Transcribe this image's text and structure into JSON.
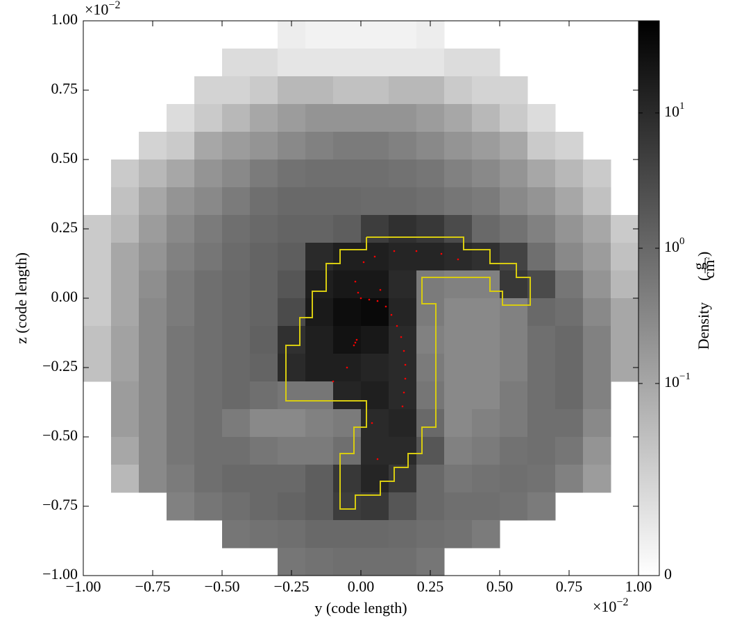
{
  "chart_data": {
    "type": "heatmap",
    "xlabel": "y  (code length)",
    "ylabel": "z  (code length)",
    "x_multiplier": {
      "base": "×10",
      "exponent": "−2"
    },
    "y_multiplier": {
      "base": "×10",
      "exponent": "−2"
    },
    "xlim": [
      -1,
      1
    ],
    "ylim": [
      -1,
      1
    ],
    "xticks": [
      {
        "value": -1,
        "label": "−1.00"
      },
      {
        "value": -0.75,
        "label": "−0.75"
      },
      {
        "value": -0.5,
        "label": "−0.50"
      },
      {
        "value": -0.25,
        "label": "−0.25"
      },
      {
        "value": 0,
        "label": "0.00"
      },
      {
        "value": 0.25,
        "label": "0.25"
      },
      {
        "value": 0.5,
        "label": "0.50"
      },
      {
        "value": 0.75,
        "label": "0.75"
      },
      {
        "value": 1,
        "label": "1.00"
      }
    ],
    "yticks": [
      {
        "value": -1,
        "label": "−1.00"
      },
      {
        "value": -0.75,
        "label": "−0.75"
      },
      {
        "value": -0.5,
        "label": "−0.50"
      },
      {
        "value": -0.25,
        "label": "−0.25"
      },
      {
        "value": 0,
        "label": "0.00"
      },
      {
        "value": 0.25,
        "label": "0.25"
      },
      {
        "value": 0.5,
        "label": "0.50"
      },
      {
        "value": 0.75,
        "label": "0.75"
      },
      {
        "value": 1,
        "label": "1.00"
      }
    ],
    "cmap": "gray_r",
    "colorbar": {
      "label": "Density",
      "units_num": "g",
      "units_den": "cm",
      "units_exp": "2",
      "scale": "symlog",
      "linthresh": 0.1,
      "linscale": 1.42,
      "clim": [
        0,
        48
      ],
      "ticks": [
        {
          "value": 0,
          "label": "0"
        },
        {
          "value": 0.1,
          "label": "10",
          "exponent": "−1"
        },
        {
          "value": 1,
          "label": "10",
          "exponent": "0"
        },
        {
          "value": 10,
          "label": "10",
          "exponent": "1"
        }
      ]
    },
    "values": [
      [
        null,
        null,
        null,
        null,
        null,
        null,
        null,
        0.02,
        0.015,
        0.015,
        0.015,
        0.015,
        0.02,
        null,
        null,
        null,
        null,
        null,
        null,
        null
      ],
      [
        null,
        null,
        null,
        null,
        null,
        0.04,
        0.04,
        0.03,
        0.03,
        0.03,
        0.03,
        0.03,
        0.03,
        0.04,
        0.04,
        null,
        null,
        null,
        null,
        null
      ],
      [
        null,
        null,
        null,
        null,
        0.05,
        0.05,
        0.06,
        0.08,
        0.08,
        0.07,
        0.07,
        0.08,
        0.08,
        0.06,
        0.05,
        0.05,
        null,
        null,
        null,
        null
      ],
      [
        null,
        null,
        null,
        0.04,
        0.06,
        0.08,
        0.1,
        0.15,
        0.2,
        0.2,
        0.2,
        0.2,
        0.15,
        0.1,
        0.08,
        0.06,
        0.04,
        null,
        null,
        null
      ],
      [
        null,
        null,
        0.05,
        0.06,
        0.1,
        0.15,
        0.2,
        0.3,
        0.4,
        0.5,
        0.5,
        0.4,
        0.3,
        0.2,
        0.15,
        0.1,
        0.06,
        0.05,
        null,
        null
      ],
      [
        null,
        0.06,
        0.08,
        0.1,
        0.2,
        0.3,
        0.5,
        0.7,
        0.8,
        0.8,
        0.8,
        0.7,
        0.6,
        0.4,
        0.3,
        0.2,
        0.1,
        0.08,
        0.06,
        null
      ],
      [
        null,
        0.07,
        0.1,
        0.2,
        0.3,
        0.5,
        0.8,
        1,
        1,
        1,
        0.9,
        0.9,
        0.8,
        0.6,
        0.5,
        0.3,
        0.2,
        0.1,
        0.07,
        null
      ],
      [
        0.06,
        0.08,
        0.15,
        0.3,
        0.5,
        0.8,
        1,
        1.2,
        1.2,
        1.5,
        5,
        8,
        6,
        3,
        1,
        0.7,
        0.4,
        0.2,
        0.1,
        0.06
      ],
      [
        0.06,
        0.1,
        0.2,
        0.4,
        0.6,
        0.9,
        1.2,
        1.5,
        10,
        15,
        15,
        12,
        12,
        10,
        8,
        4,
        0.8,
        0.3,
        0.15,
        0.07
      ],
      [
        0.06,
        0.1,
        0.25,
        0.5,
        0.8,
        1,
        1.2,
        2,
        15,
        20,
        20,
        10,
        0.5,
        0.4,
        0.4,
        6,
        3,
        0.6,
        0.2,
        0.08
      ],
      [
        0.06,
        0.1,
        0.3,
        0.5,
        0.8,
        1,
        1.2,
        3,
        18,
        30,
        35,
        12,
        0.5,
        0.3,
        0.3,
        0.4,
        1,
        0.8,
        0.3,
        0.1
      ],
      [
        0.07,
        0.12,
        0.3,
        0.6,
        0.8,
        1,
        1.3,
        8,
        15,
        25,
        20,
        10,
        0.4,
        0.3,
        0.3,
        0.4,
        0.8,
        1,
        0.4,
        0.1
      ],
      [
        0.07,
        0.12,
        0.3,
        0.6,
        0.8,
        1,
        1.2,
        10,
        15,
        15,
        12,
        10,
        0.5,
        0.3,
        0.3,
        0.4,
        0.8,
        1,
        0.4,
        0.1
      ],
      [
        null,
        0.15,
        0.3,
        0.6,
        0.8,
        1,
        0.8,
        0.6,
        0.6,
        12,
        15,
        10,
        0.6,
        0.3,
        0.3,
        0.5,
        0.8,
        1,
        0.4,
        null
      ],
      [
        null,
        0.15,
        0.3,
        0.6,
        0.8,
        0.5,
        0.3,
        0.3,
        0.4,
        0.5,
        10,
        12,
        1,
        0.3,
        0.4,
        0.5,
        0.8,
        0.8,
        0.3,
        null
      ],
      [
        null,
        0.1,
        0.3,
        0.6,
        0.8,
        0.8,
        0.6,
        0.5,
        0.5,
        0.8,
        10,
        10,
        2,
        0.4,
        0.5,
        0.7,
        0.8,
        0.6,
        0.2,
        null
      ],
      [
        null,
        0.08,
        0.3,
        0.5,
        0.8,
        1,
        1,
        1,
        1.5,
        6,
        12,
        6,
        1,
        0.6,
        0.7,
        0.8,
        0.7,
        0.4,
        0.15,
        null
      ],
      [
        null,
        null,
        null,
        0.4,
        0.6,
        0.8,
        1,
        1.2,
        1.5,
        5,
        6,
        2,
        1,
        0.8,
        0.8,
        0.7,
        0.5,
        null,
        null,
        null
      ],
      [
        null,
        null,
        null,
        null,
        null,
        0.6,
        0.7,
        0.8,
        1,
        1,
        1,
        0.9,
        0.8,
        0.7,
        0.5,
        null,
        null,
        null,
        null,
        null
      ],
      [
        null,
        null,
        null,
        null,
        null,
        null,
        null,
        0.6,
        0.7,
        0.8,
        0.8,
        0.8,
        0.6,
        null,
        null,
        null,
        null,
        null,
        null,
        null
      ]
    ],
    "contour": {
      "color": "#d8cc10",
      "y": [
        0.02,
        0.37,
        0.37,
        0.465,
        0.465,
        0.56,
        0.56,
        0.61,
        0.61,
        0.51,
        0.51,
        0.465,
        0.465,
        0.22,
        0.22,
        0.27,
        0.27,
        0.22,
        0.22,
        0.17,
        0.17,
        0.12,
        0.12,
        0.07,
        0.07,
        -0.02,
        -0.02,
        -0.075,
        -0.075,
        -0.025,
        -0.025,
        0.02,
        0.02,
        -0.27,
        -0.27,
        -0.22,
        -0.22,
        -0.175,
        -0.175,
        -0.125,
        -0.125,
        -0.075,
        -0.075,
        0.02,
        0.02
      ],
      "z": [
        0.22,
        0.22,
        0.175,
        0.175,
        0.125,
        0.125,
        0.075,
        0.075,
        -0.025,
        -0.025,
        0.025,
        0.025,
        0.075,
        0.075,
        -0.02,
        -0.02,
        -0.465,
        -0.465,
        -0.56,
        -0.56,
        -0.61,
        -0.61,
        -0.66,
        -0.66,
        -0.71,
        -0.71,
        -0.76,
        -0.76,
        -0.56,
        -0.56,
        -0.465,
        -0.465,
        -0.37,
        -0.37,
        -0.17,
        -0.17,
        -0.07,
        -0.07,
        0.025,
        0.025,
        0.125,
        0.125,
        0.175,
        0.175,
        0.22
      ]
    },
    "particles": {
      "color": "#ff0000",
      "y": [
        0.0,
        0.03,
        0.06,
        0.09,
        0.11,
        0.13,
        0.145,
        0.155,
        0.16,
        0.16,
        0.155,
        0.15,
        -0.02,
        -0.015,
        -0.025,
        0.01,
        0.05,
        0.12,
        0.2,
        0.29,
        0.35,
        -0.02,
        -0.05,
        -0.1,
        0.04,
        0.06,
        -0.01,
        0.07
      ],
      "z": [
        0.0,
        -0.005,
        -0.01,
        -0.03,
        -0.06,
        -0.1,
        -0.14,
        -0.19,
        -0.24,
        -0.29,
        -0.34,
        -0.39,
        -0.16,
        -0.15,
        -0.17,
        0.13,
        0.15,
        0.17,
        0.17,
        0.16,
        0.14,
        0.06,
        -0.25,
        -0.3,
        -0.45,
        -0.58,
        0.02,
        0.03
      ]
    }
  }
}
